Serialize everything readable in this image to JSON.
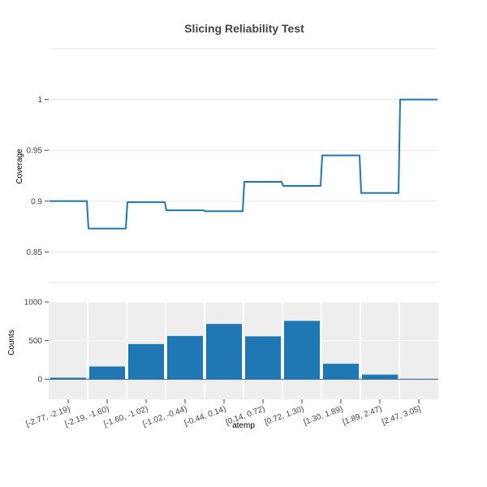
{
  "chart_data": [
    {
      "type": "line",
      "title": "Slicing Reliability Test",
      "ylabel": "Coverage",
      "ylim": [
        0.82,
        1.05
      ],
      "yticks": [
        0.85,
        0.9,
        0.95,
        1
      ],
      "ytick_labels": [
        "0.85",
        "0.9",
        "0.95",
        "1"
      ],
      "categories": [
        "[-2.77, -2.19)",
        "[-2.19, -1.60)",
        "[-1.60, -1.02)",
        "[-1.02, -0.44)",
        "[-0.44, 0.14)",
        "[0.14, 0.72)",
        "[0.72, 1.30)",
        "[1.30, 1.89)",
        "[1.89, 2.47)",
        "[2.47, 3.05]"
      ],
      "values": [
        0.9,
        0.873,
        0.899,
        0.891,
        0.89,
        0.919,
        0.915,
        0.945,
        0.908,
        1.0
      ],
      "line_color": "#1f77b4",
      "line_shape": "step"
    },
    {
      "type": "bar",
      "xlabel": "atemp",
      "ylabel": "Counts",
      "ylim": [
        -260,
        1000
      ],
      "yticks": [
        0,
        500,
        1000
      ],
      "ytick_labels": [
        "0",
        "500",
        "1000"
      ],
      "categories": [
        "[-2.77, -2.19)",
        "[-2.19, -1.60)",
        "[-1.60, -1.02)",
        "[-1.02, -0.44)",
        "[-0.44, 0.14)",
        "[0.14, 0.72)",
        "[0.72, 1.30)",
        "[1.30, 1.89)",
        "[1.89, 2.47)",
        "[2.47, 3.05]"
      ],
      "values": [
        20,
        165,
        455,
        560,
        715,
        555,
        755,
        200,
        60,
        3
      ],
      "bar_color": "#1f77b4",
      "background": "#eeeeee"
    }
  ]
}
